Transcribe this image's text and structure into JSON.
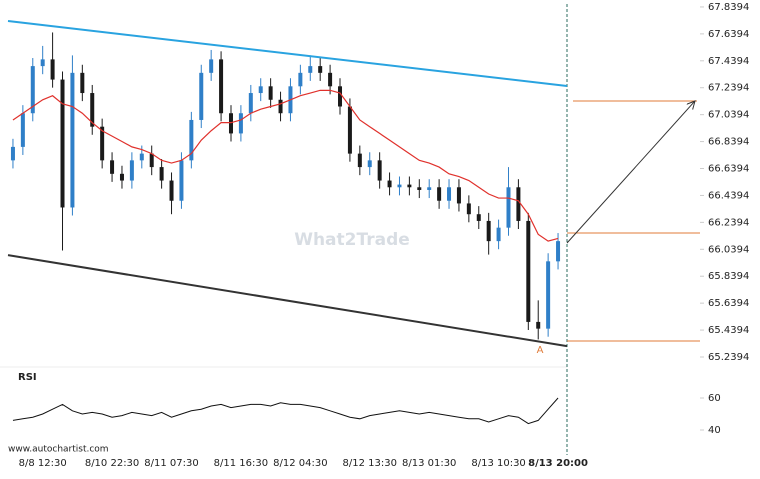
{
  "chart_data": {
    "type": "candlestick",
    "source": "www.autochartist.com",
    "watermark": "What2Trade",
    "pattern_label": "A",
    "categories": [
      null,
      null,
      null,
      "8/8 12:30",
      null,
      null,
      null,
      null,
      null,
      null,
      "8/10 22:30",
      null,
      null,
      null,
      null,
      null,
      "8/11 07:30",
      null,
      null,
      null,
      null,
      null,
      null,
      "8/11 16:30",
      null,
      null,
      null,
      null,
      null,
      "8/12 04:30",
      null,
      null,
      null,
      null,
      null,
      null,
      "8/12 13:30",
      null,
      null,
      null,
      null,
      null,
      "8/13 01:30",
      null,
      null,
      null,
      null,
      null,
      null,
      "8/13 10:30",
      null,
      null,
      null,
      null,
      null,
      "8/13 20:00"
    ],
    "open": [
      66.7,
      66.8,
      67.05,
      67.4,
      67.45,
      67.3,
      66.35,
      67.35,
      67.2,
      66.95,
      66.7,
      66.6,
      66.55,
      66.7,
      66.75,
      66.65,
      66.55,
      66.4,
      66.7,
      67.0,
      67.35,
      67.45,
      67.05,
      66.9,
      67.05,
      67.2,
      67.25,
      67.15,
      67.05,
      67.25,
      67.35,
      67.4,
      67.35,
      67.25,
      67.1,
      66.75,
      66.65,
      66.7,
      66.55,
      66.5,
      66.52,
      66.5,
      66.48,
      66.5,
      66.4,
      66.5,
      66.38,
      66.3,
      66.25,
      66.1,
      66.2,
      66.5,
      66.25,
      65.5,
      65.45,
      65.95
    ],
    "high": [
      66.86,
      67.11,
      67.46,
      67.55,
      67.65,
      67.36,
      67.48,
      67.41,
      67.26,
      67.01,
      66.76,
      66.66,
      66.76,
      66.81,
      66.81,
      66.71,
      66.61,
      66.76,
      67.06,
      67.41,
      67.52,
      67.51,
      67.11,
      67.11,
      67.26,
      67.31,
      67.31,
      67.21,
      67.31,
      67.41,
      67.48,
      67.46,
      67.41,
      67.31,
      67.16,
      66.81,
      66.76,
      66.76,
      66.61,
      66.58,
      66.58,
      66.56,
      66.56,
      66.56,
      66.56,
      66.56,
      66.44,
      66.36,
      66.31,
      66.26,
      66.65,
      66.56,
      66.31,
      65.66,
      66.01,
      66.16
    ],
    "low": [
      66.64,
      66.74,
      66.99,
      67.34,
      67.24,
      66.03,
      66.29,
      67.14,
      66.89,
      66.64,
      66.54,
      66.49,
      66.49,
      66.64,
      66.59,
      66.49,
      66.3,
      66.34,
      66.64,
      66.94,
      67.29,
      66.99,
      66.84,
      66.84,
      66.99,
      67.14,
      67.09,
      66.99,
      66.99,
      67.19,
      67.29,
      67.29,
      67.19,
      67.04,
      66.69,
      66.59,
      66.59,
      66.49,
      66.44,
      66.44,
      66.44,
      66.42,
      66.42,
      66.34,
      66.34,
      66.32,
      66.24,
      66.19,
      66.0,
      66.04,
      66.14,
      66.19,
      65.44,
      65.37,
      65.39,
      65.89
    ],
    "close": [
      66.8,
      67.05,
      67.4,
      67.45,
      67.3,
      66.35,
      67.35,
      67.2,
      66.95,
      66.7,
      66.6,
      66.55,
      66.7,
      66.75,
      66.65,
      66.55,
      66.4,
      66.7,
      67.0,
      67.35,
      67.45,
      67.05,
      66.9,
      67.05,
      67.2,
      67.25,
      67.15,
      67.05,
      67.25,
      67.35,
      67.4,
      67.35,
      67.25,
      67.1,
      66.75,
      66.65,
      66.7,
      66.55,
      66.5,
      66.52,
      66.5,
      66.48,
      66.5,
      66.4,
      66.5,
      66.38,
      66.3,
      66.25,
      66.1,
      66.2,
      66.5,
      66.25,
      65.5,
      65.45,
      65.95,
      66.1
    ],
    "up_color": "#2f7fc8",
    "down_color": "#1a1a1a",
    "ma": {
      "color": "#e0312c",
      "values": [
        67.0,
        67.05,
        67.1,
        67.15,
        67.18,
        67.12,
        67.1,
        67.05,
        66.98,
        66.92,
        66.88,
        66.84,
        66.8,
        66.78,
        66.75,
        66.7,
        66.68,
        66.7,
        66.75,
        66.85,
        66.92,
        66.98,
        66.98,
        67.0,
        67.05,
        67.08,
        67.1,
        67.12,
        67.15,
        67.18,
        67.2,
        67.22,
        67.22,
        67.2,
        67.1,
        67.0,
        66.95,
        66.9,
        66.85,
        66.8,
        66.75,
        66.7,
        66.68,
        66.65,
        66.6,
        66.58,
        66.55,
        66.5,
        66.45,
        66.42,
        66.42,
        66.4,
        66.3,
        66.15,
        66.1,
        66.12
      ]
    },
    "channel": {
      "upper": [
        67.735,
        67.252
      ],
      "upper_color": "#29a3e0",
      "lower": [
        65.996,
        65.32
      ],
      "lower_color": "#333333"
    },
    "levels": [
      67.141,
      66.16,
      65.358
    ],
    "level_color": "#e07b39",
    "forecast": [
      66.086,
      67.141
    ],
    "ylim": [
      65.18,
      67.891
    ],
    "yticks": [
      67.8394,
      67.6394,
      67.4394,
      67.2394,
      67.0394,
      66.8394,
      66.6394,
      66.4394,
      66.2394,
      66.0394,
      65.8394,
      65.6394,
      65.4394,
      65.2394
    ],
    "rsi": {
      "title": "RSI",
      "values": [
        46,
        47,
        48,
        50,
        53,
        56,
        52,
        50,
        51,
        50,
        48,
        49,
        51,
        50,
        49,
        51,
        48,
        50,
        52,
        53,
        55,
        56,
        54,
        55,
        56,
        56,
        55,
        57,
        56,
        56,
        55,
        54,
        52,
        50,
        48,
        47,
        49,
        50,
        51,
        52,
        51,
        50,
        51,
        50,
        49,
        48,
        47,
        47,
        45,
        47,
        49,
        48,
        44,
        46,
        53,
        60
      ],
      "ylim": [
        30,
        75
      ],
      "yticks": [
        60,
        40
      ]
    }
  }
}
